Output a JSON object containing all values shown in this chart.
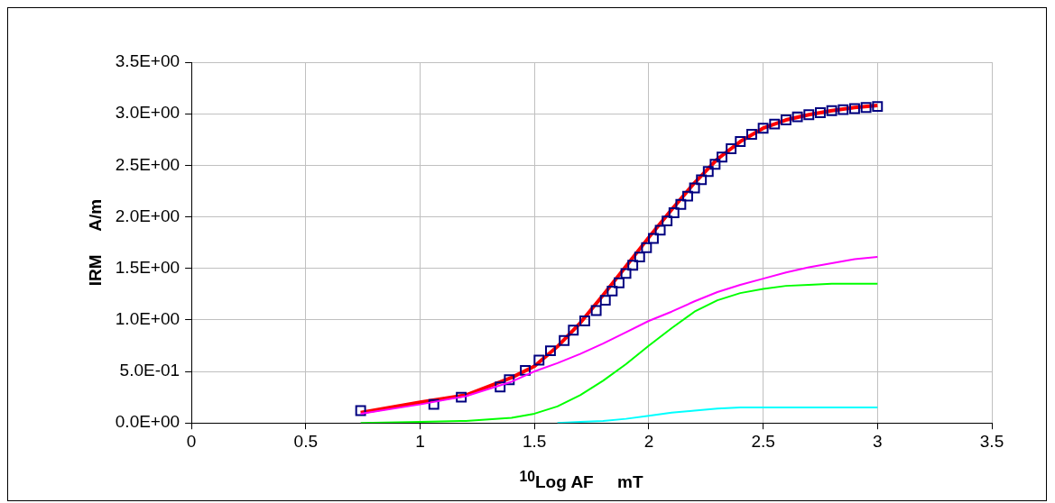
{
  "chart_data": {
    "type": "scatter",
    "xlabel": "$^{10}$Log AF     mT",
    "ylabel": "IRM     A/m",
    "xlim": [
      0,
      3.5
    ],
    "xticks": [
      0,
      0.5,
      1,
      1.5,
      2,
      2.5,
      3,
      3.5
    ],
    "ylim": [
      0,
      3.5
    ],
    "yticks": [
      {
        "value": 0,
        "label": "0.0E+00"
      },
      {
        "value": 0.5,
        "label": "5.0E-01"
      },
      {
        "value": 1,
        "label": "1.0E+00"
      },
      {
        "value": 1.5,
        "label": "1.5E+00"
      },
      {
        "value": 2,
        "label": "2.0E+00"
      },
      {
        "value": 2.5,
        "label": "2.5E+00"
      },
      {
        "value": 3,
        "label": "3.0E+00"
      },
      {
        "value": 3.5,
        "label": "3.5E+00"
      }
    ],
    "grid": true,
    "legend": false,
    "series": [
      {
        "type": "line",
        "color": "#00ffff",
        "x": [
          1.6,
          1.7,
          1.8,
          1.9,
          2.0,
          2.1,
          2.2,
          2.3,
          2.4,
          2.5,
          2.6,
          2.7,
          2.8,
          2.9,
          3.0
        ],
        "values": [
          0,
          0.01,
          0.02,
          0.04,
          0.07,
          0.1,
          0.12,
          0.14,
          0.15,
          0.15,
          0.15,
          0.15,
          0.15,
          0.15,
          0.15
        ]
      },
      {
        "type": "line",
        "color": "#00ff00",
        "x": [
          0.74,
          1.0,
          1.2,
          1.4,
          1.5,
          1.6,
          1.7,
          1.8,
          1.9,
          2.0,
          2.1,
          2.2,
          2.3,
          2.4,
          2.5,
          2.6,
          2.7,
          2.8,
          2.9,
          3.0
        ],
        "values": [
          0,
          0.01,
          0.02,
          0.05,
          0.09,
          0.16,
          0.27,
          0.41,
          0.57,
          0.75,
          0.92,
          1.08,
          1.19,
          1.26,
          1.3,
          1.33,
          1.34,
          1.35,
          1.35,
          1.35
        ]
      },
      {
        "type": "line",
        "color": "#ff00ff",
        "x": [
          0.74,
          1.0,
          1.2,
          1.4,
          1.5,
          1.6,
          1.7,
          1.8,
          1.9,
          2.0,
          2.1,
          2.2,
          2.3,
          2.4,
          2.5,
          2.6,
          2.7,
          2.8,
          2.9,
          3.0
        ],
        "values": [
          0.09,
          0.18,
          0.26,
          0.4,
          0.5,
          0.58,
          0.67,
          0.77,
          0.88,
          0.99,
          1.08,
          1.18,
          1.27,
          1.34,
          1.4,
          1.46,
          1.51,
          1.55,
          1.59,
          1.61
        ]
      },
      {
        "type": "scatter",
        "marker": "square",
        "color": "#000080",
        "x": [
          0.74,
          1.06,
          1.18,
          1.35,
          1.39,
          1.46,
          1.52,
          1.57,
          1.63,
          1.67,
          1.72,
          1.77,
          1.81,
          1.84,
          1.87,
          1.9,
          1.93,
          1.96,
          1.99,
          2.02,
          2.05,
          2.08,
          2.11,
          2.14,
          2.17,
          2.2,
          2.23,
          2.26,
          2.29,
          2.32,
          2.36,
          2.4,
          2.45,
          2.5,
          2.55,
          2.6,
          2.65,
          2.7,
          2.75,
          2.8,
          2.85,
          2.9,
          2.95,
          3.0
        ],
        "values": [
          0.12,
          0.18,
          0.25,
          0.35,
          0.42,
          0.51,
          0.61,
          0.7,
          0.8,
          0.9,
          0.99,
          1.09,
          1.19,
          1.28,
          1.36,
          1.45,
          1.53,
          1.61,
          1.7,
          1.79,
          1.87,
          1.96,
          2.04,
          2.12,
          2.2,
          2.28,
          2.36,
          2.44,
          2.51,
          2.58,
          2.66,
          2.73,
          2.8,
          2.86,
          2.9,
          2.94,
          2.97,
          2.99,
          3.01,
          3.03,
          3.04,
          3.05,
          3.06,
          3.07
        ]
      },
      {
        "type": "line",
        "color": "#ff0000",
        "x": [
          0.74,
          1.0,
          1.2,
          1.4,
          1.5,
          1.6,
          1.7,
          1.8,
          1.9,
          2.0,
          2.1,
          2.2,
          2.3,
          2.4,
          2.5,
          2.6,
          2.7,
          2.8,
          2.9,
          3.0
        ],
        "values": [
          0.1,
          0.2,
          0.27,
          0.44,
          0.55,
          0.74,
          0.97,
          1.24,
          1.52,
          1.8,
          2.07,
          2.33,
          2.56,
          2.73,
          2.86,
          2.94,
          2.99,
          3.03,
          3.06,
          3.08
        ]
      }
    ]
  }
}
